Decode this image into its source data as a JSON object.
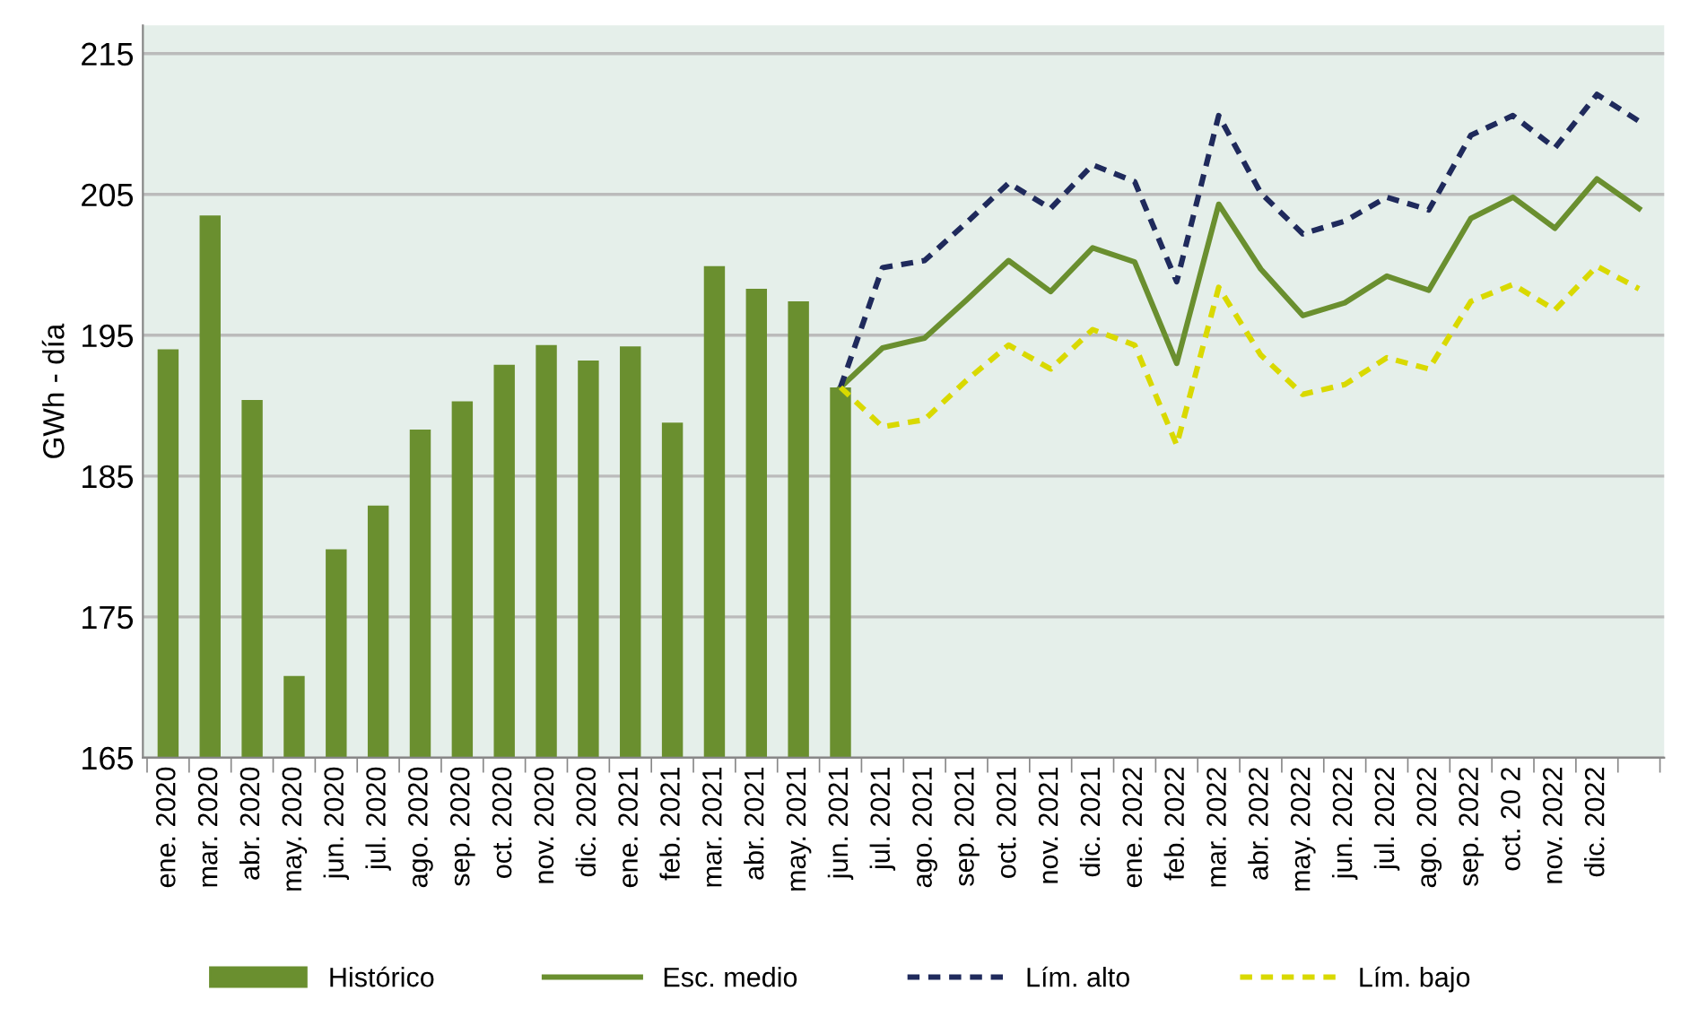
{
  "chart_data": {
    "type": "bar",
    "ylabel": "GWh - día",
    "categories": [
      "ene. 2020",
      "mar. 2020",
      "abr. 2020",
      "may. 2020",
      "jun. 2020",
      "jul. 2020",
      "ago. 2020",
      "sep. 2020",
      "oct. 2020",
      "nov. 2020",
      "dic. 2020",
      "ene. 2021",
      "feb. 2021",
      "mar. 2021",
      "abr. 2021",
      "may. 2021",
      "jun. 2021",
      "jul. 2021",
      "ago. 2021",
      "sep. 2021",
      "oct. 2021",
      "nov. 2021",
      "dic. 2021",
      "ene. 2022",
      "feb. 2022",
      "mar. 2022",
      "abr. 2022",
      "may. 2022",
      "jun. 2022",
      "jul. 2022",
      "ago. 2022",
      "sep. 2022",
      "oct. 20 2",
      "nov. 2022",
      "dic. 2022",
      null
    ],
    "series": [
      {
        "name": "Histórico",
        "color": "#6a8f2f",
        "values": [
          194.0,
          203.5,
          190.4,
          170.8,
          179.8,
          182.9,
          188.3,
          190.3,
          192.9,
          194.3,
          193.2,
          194.2,
          188.8,
          199.9,
          198.3,
          197.4,
          191.3,
          null,
          null,
          null,
          null,
          null,
          null,
          null,
          null,
          null,
          null,
          null,
          null,
          null,
          null,
          null,
          null,
          null,
          null,
          null
        ]
      },
      {
        "name": "Esc. medio",
        "type": "line",
        "color": "#6a8f2f",
        "line_style": "solid",
        "values": [
          null,
          null,
          null,
          null,
          null,
          null,
          null,
          null,
          null,
          null,
          null,
          null,
          null,
          null,
          null,
          null,
          191.3,
          194.1,
          194.8,
          197.5,
          200.3,
          198.1,
          201.2,
          200.2,
          193.0,
          204.3,
          199.7,
          196.4,
          197.3,
          199.2,
          198.2,
          203.3,
          204.8,
          202.6,
          206.1,
          204.0
        ]
      },
      {
        "name": "Lím. alto",
        "type": "line",
        "color": "#1f2a5c",
        "line_style": "dashed",
        "values": [
          null,
          null,
          null,
          null,
          null,
          null,
          null,
          null,
          null,
          null,
          null,
          null,
          null,
          null,
          null,
          null,
          191.3,
          199.8,
          200.3,
          203.0,
          205.8,
          204.0,
          207.1,
          205.9,
          198.8,
          210.6,
          205.1,
          202.2,
          203.1,
          204.8,
          203.9,
          209.2,
          210.6,
          208.3,
          212.1,
          210.2
        ]
      },
      {
        "name": "Lím. bajo",
        "type": "line",
        "color": "#d9d900",
        "line_style": "dashed",
        "values": [
          null,
          null,
          null,
          null,
          null,
          null,
          null,
          null,
          null,
          null,
          null,
          null,
          null,
          null,
          null,
          null,
          191.3,
          188.5,
          189.0,
          191.8,
          194.3,
          192.6,
          195.4,
          194.3,
          187.2,
          198.4,
          193.6,
          190.8,
          191.5,
          193.4,
          192.6,
          197.4,
          198.6,
          196.8,
          199.9,
          198.3
        ]
      }
    ],
    "ylim": [
      165,
      217
    ],
    "yticks": [
      165,
      175,
      185,
      195,
      205,
      215
    ],
    "grid": "y",
    "legend": "bottom"
  }
}
